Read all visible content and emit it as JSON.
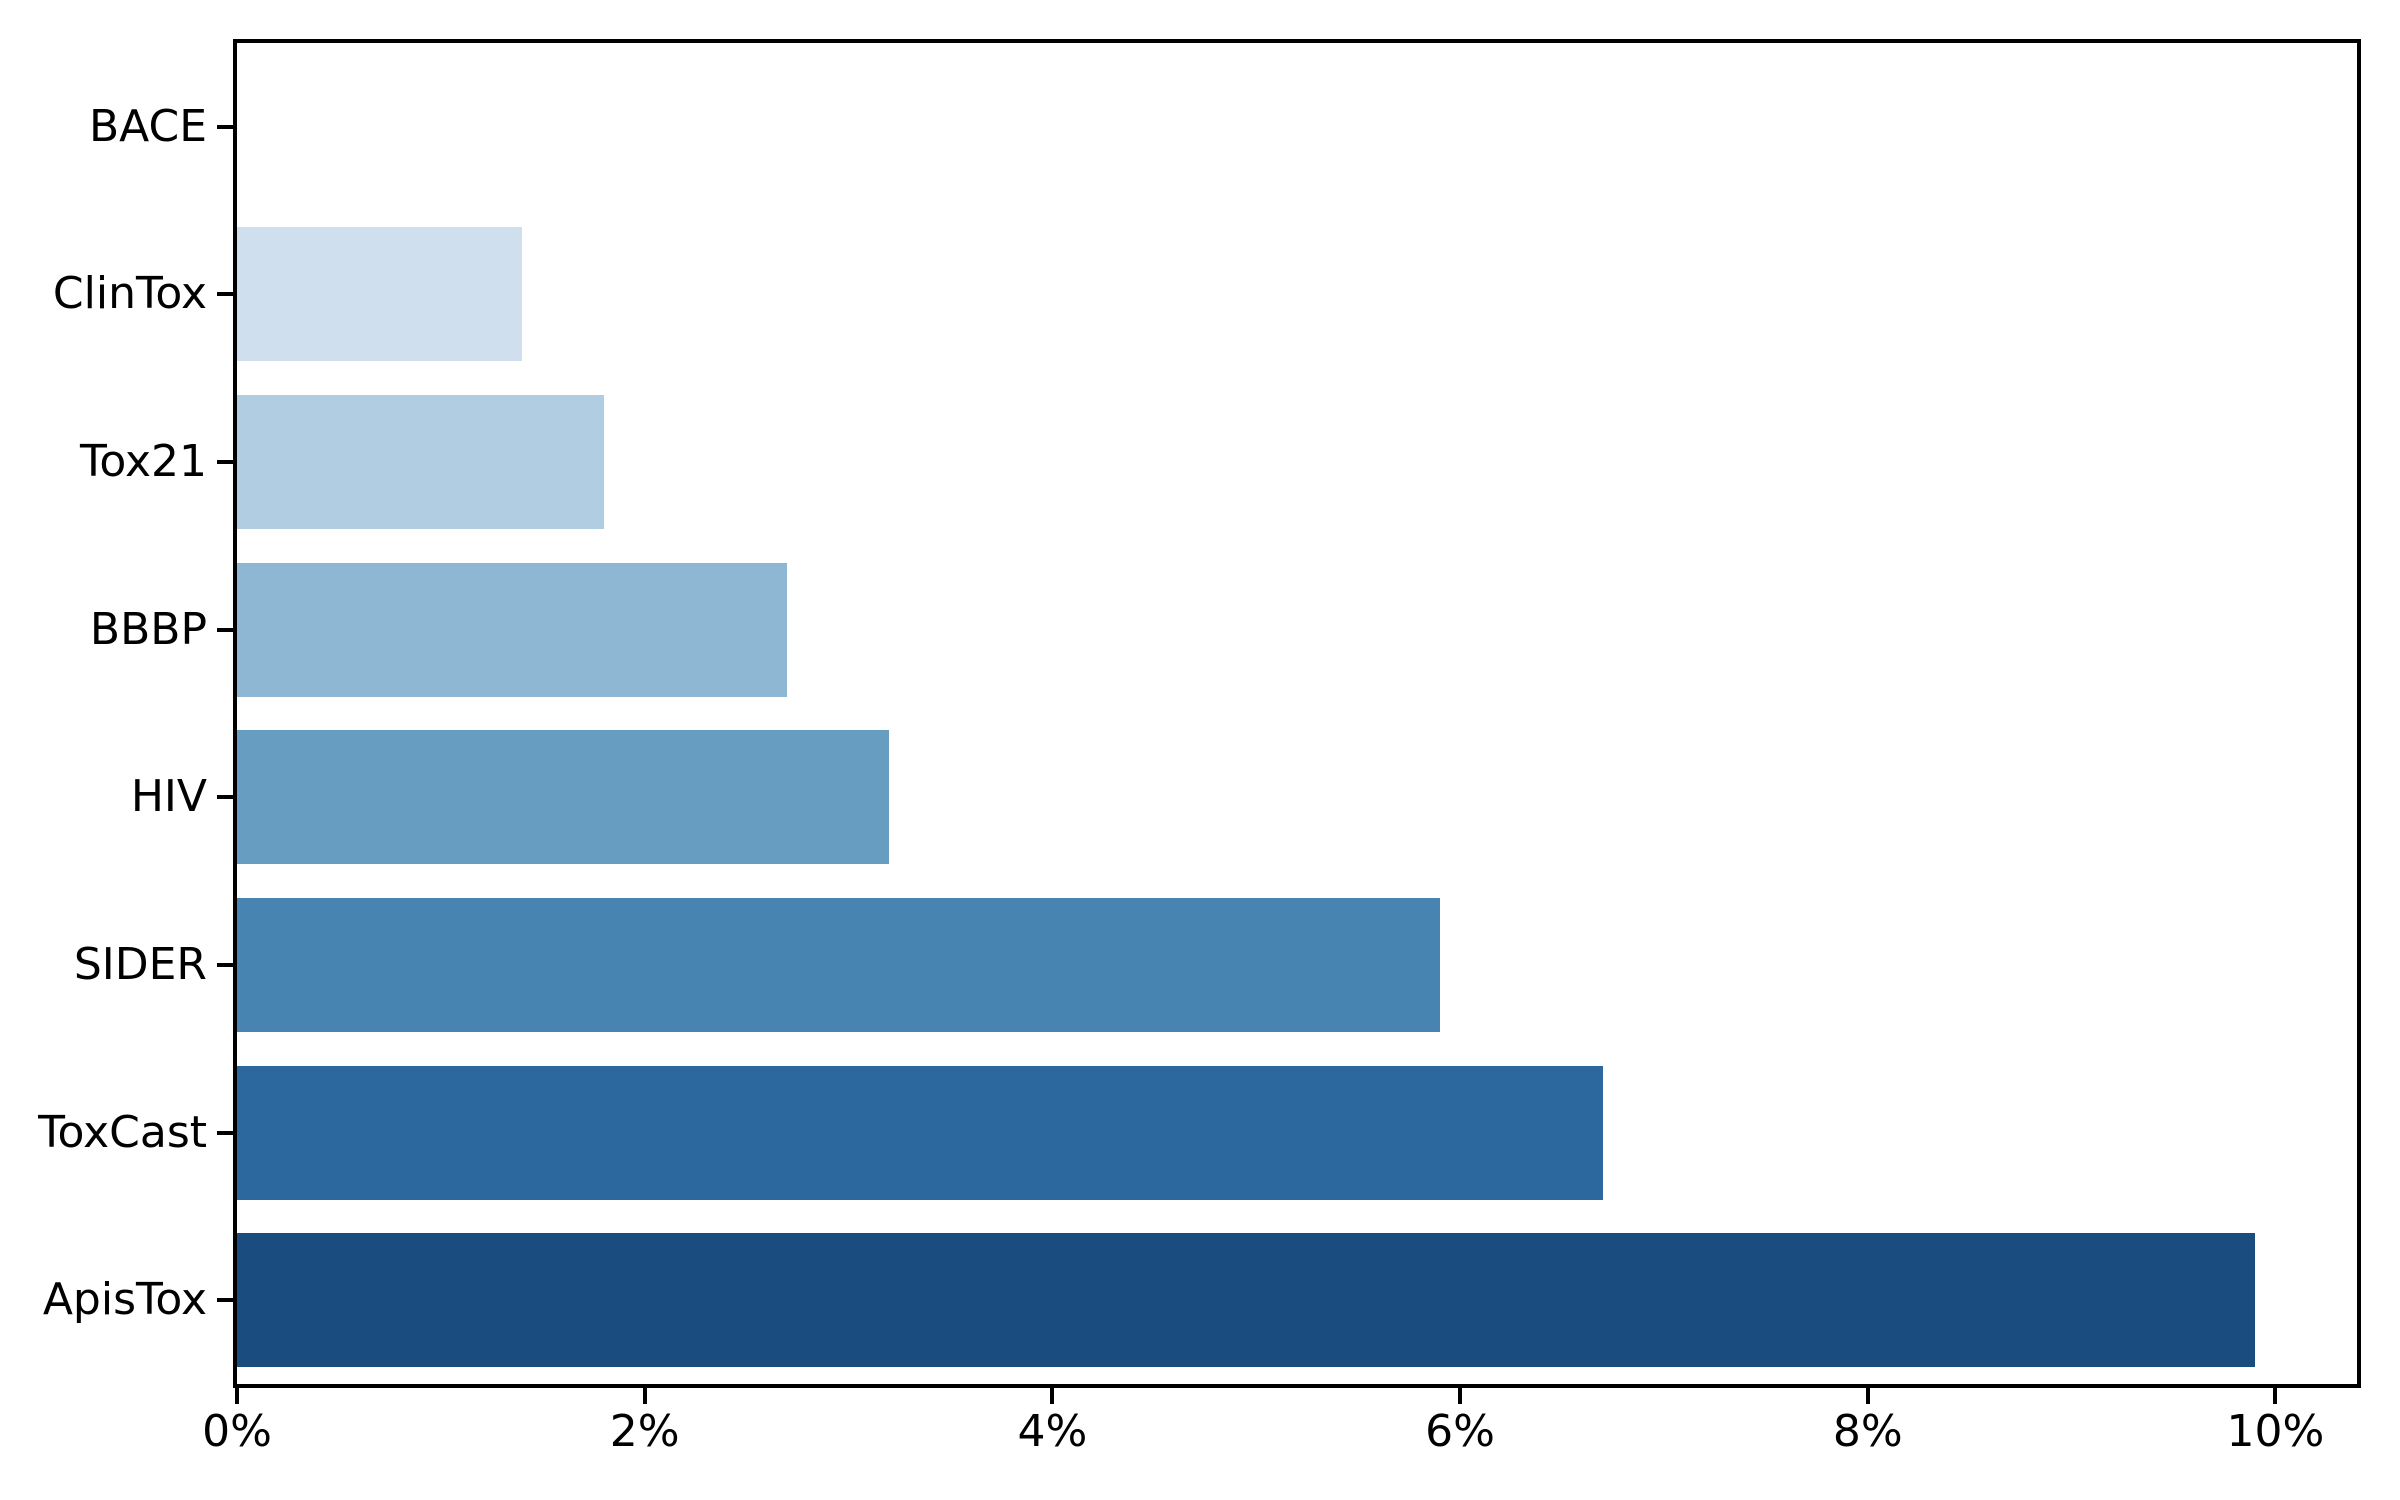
{
  "figure": {
    "background": "#ffffff",
    "plot_background": "#ffffff",
    "axis_color": "#000000",
    "text_color": "#000000"
  },
  "chart_data": {
    "type": "bar",
    "orientation": "horizontal",
    "title": "",
    "xlabel": "",
    "ylabel": "",
    "categories": [
      "BACE",
      "ClinTox",
      "Tox21",
      "BBBP",
      "HIV",
      "SIDER",
      "ToxCast",
      "ApisTox"
    ],
    "values": [
      0.0,
      1.4,
      1.8,
      2.7,
      3.2,
      5.9,
      6.7,
      9.9
    ],
    "value_unit": "%",
    "bar_colors": [
      "#edf4fa",
      "#cfdfed",
      "#b0cde2",
      "#8db7d3",
      "#669dc1",
      "#4784b1",
      "#2c689e",
      "#1a4c7f"
    ],
    "xlim": [
      0,
      10.4
    ],
    "x_ticks": [
      0,
      2,
      4,
      6,
      8,
      10
    ],
    "x_tick_labels": [
      "0%",
      "2%",
      "4%",
      "6%",
      "8%",
      "10%"
    ],
    "grid": false,
    "legend": "none",
    "bar_height_fraction": 0.8
  }
}
